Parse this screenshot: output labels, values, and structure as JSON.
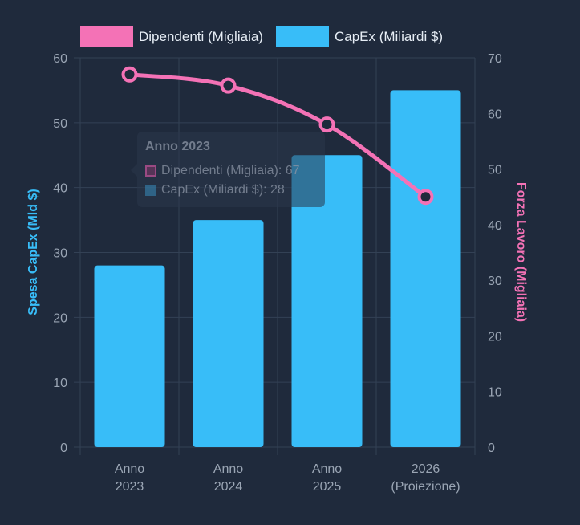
{
  "chart_data": {
    "type": "bar",
    "categories": [
      [
        "Anno",
        "2023"
      ],
      [
        "Anno",
        "2024"
      ],
      [
        "Anno",
        "2025"
      ],
      [
        "2026",
        "(Proiezione)"
      ]
    ],
    "series": [
      {
        "name": "Dipendenti (Migliaia)",
        "type": "line",
        "axis": "right",
        "values": [
          67,
          65,
          58,
          45
        ],
        "color": "#f472b6"
      },
      {
        "name": "CapEx (Miliardi $)",
        "type": "bar",
        "axis": "left",
        "values": [
          28,
          35,
          45,
          55
        ],
        "color": "#38bdf8"
      }
    ],
    "y_left": {
      "label": "Spesa CapEx (Mld $)",
      "min": 0,
      "max": 60,
      "ticks": [
        "0",
        "10",
        "20",
        "30",
        "40",
        "50",
        "60"
      ],
      "color": "#38bdf8"
    },
    "y_right": {
      "label": "Forza Lavoro (Migliaia)",
      "min": 0,
      "max": 70,
      "ticks": [
        "0",
        "10",
        "20",
        "30",
        "40",
        "50",
        "60",
        "70"
      ],
      "color": "#f472b6"
    },
    "legend_position": "top",
    "grid": true
  },
  "legend": {
    "items": [
      {
        "label": "Dipendenti (Migliaia)",
        "color": "#f472b6"
      },
      {
        "label": "CapEx (Miliardi $)",
        "color": "#38bdf8"
      }
    ]
  },
  "tooltip": {
    "title": "Anno 2023",
    "line1": "Dipendenti (Migliaia): 67",
    "line2": "CapEx (Miliardi $): 28"
  },
  "colors": {
    "background": "#1f2a3c",
    "grid": "#334155",
    "tick_text": "#9aa5b4",
    "point_fill": "#1f2a3c"
  }
}
